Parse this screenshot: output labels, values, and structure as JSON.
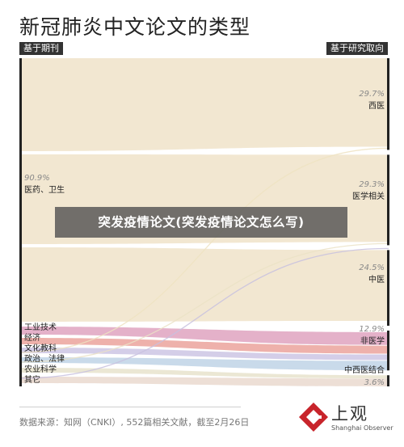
{
  "title": "新冠肺炎中文论文的类型",
  "header_left": "基于期刊",
  "header_right": "基于研究取向",
  "overlay_text": "突发疫情论文(突发疫情论文怎么写)",
  "source": "数据来源：知网（CNKI）, 552篇相关文献，截至2月26日",
  "logo": {
    "name": "上观",
    "sub": "Shanghai Observer"
  },
  "colors": {
    "cream": "#f3ead7",
    "cream_link": "#f1e6cf",
    "pink": "#dfa3c0",
    "coral": "#eba39c",
    "lavender": "#cdc6e4",
    "blue": "#bfd4e6",
    "red_accent": "#c8242b"
  },
  "chart_data": {
    "type": "sankey",
    "title": "新冠肺炎中文论文的类型",
    "left_label": "基于期刊",
    "right_label": "基于研究取向",
    "sources": [
      {
        "name": "医药、卫生",
        "percent": "90.9%"
      },
      {
        "name": "工业技术"
      },
      {
        "name": "经济"
      },
      {
        "name": "文化教科"
      },
      {
        "name": "政治、法律"
      },
      {
        "name": "农业科学"
      },
      {
        "name": "其它"
      }
    ],
    "targets": [
      {
        "name": "西医",
        "percent": "29.7%",
        "value": 29.7
      },
      {
        "name": "医学相关",
        "percent": "29.3%",
        "value": 29.3
      },
      {
        "name": "中医",
        "percent": "24.5%",
        "value": 24.5
      },
      {
        "name": "非医学",
        "percent": "12.9%",
        "value": 12.9
      },
      {
        "name": "中西医结合",
        "percent": "3.6%",
        "value": 3.6
      }
    ]
  }
}
